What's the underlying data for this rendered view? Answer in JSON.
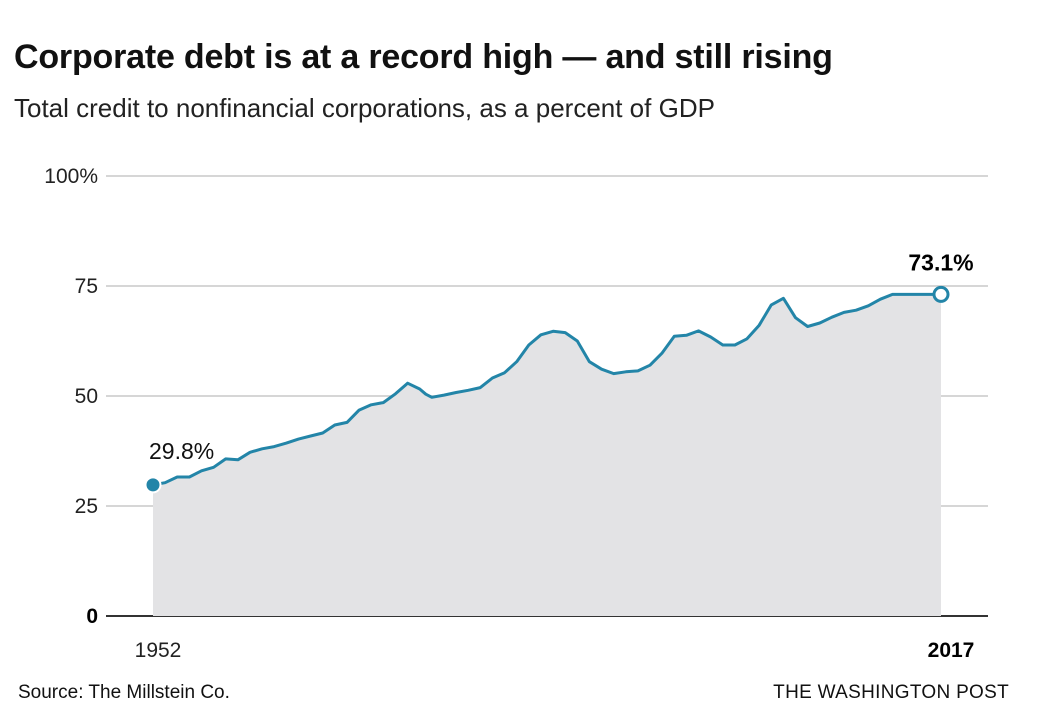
{
  "header": {
    "title": "Corporate debt is at a record high — and still rising",
    "subtitle": "Total credit to nonfinancial corporations, as a percent of GDP"
  },
  "footer": {
    "source": "Source: The Millstein Co.",
    "credit": "THE WASHINGTON POST"
  },
  "chart_data": {
    "type": "area",
    "title": "Corporate debt is at a record high — and still rising",
    "subtitle": "Total credit to nonfinancial corporations, as a percent of GDP",
    "xlabel": "",
    "ylabel": "",
    "xlim": [
      1952,
      2017
    ],
    "ylim": [
      0,
      100
    ],
    "grid": true,
    "y_ticks": [
      {
        "value": 0,
        "label": "0"
      },
      {
        "value": 25,
        "label": "25"
      },
      {
        "value": 50,
        "label": "50"
      },
      {
        "value": 75,
        "label": "75"
      },
      {
        "value": 100,
        "label": "100%"
      }
    ],
    "x_ticks": [
      {
        "value": 1952,
        "label": "1952"
      },
      {
        "value": 2017,
        "label": "2017"
      }
    ],
    "annotations": [
      {
        "x": 1952,
        "y": 29.8,
        "label": "29.8%",
        "marker": "filled"
      },
      {
        "x": 2017,
        "y": 73.1,
        "label": "73.1%",
        "marker": "open"
      }
    ],
    "colors": {
      "line": "#2385a8",
      "area": "#e3e3e5",
      "grid": "#c9c9c9",
      "axis": "#333333"
    },
    "series": [
      {
        "x": [
          1952,
          1953,
          1954,
          1955,
          1956,
          1957,
          1958,
          1959,
          1960,
          1961,
          1962,
          1963,
          1964,
          1965,
          1966,
          1967,
          1968,
          1969,
          1970,
          1971,
          1972,
          1973,
          1974,
          1974.5,
          1975,
          1976,
          1977,
          1978,
          1979,
          1980,
          1981,
          1982,
          1983,
          1984,
          1985,
          1986,
          1987,
          1988,
          1989,
          1990,
          1991,
          1992,
          1993,
          1994,
          1995,
          1996,
          1997,
          1998,
          1999,
          2000,
          2001,
          2002,
          2003,
          2004,
          2005,
          2006,
          2007,
          2008,
          2009,
          2010,
          2011,
          2012,
          2013,
          2014,
          2015,
          2016,
          2017
        ],
        "values": [
          29.8,
          30.3,
          31.6,
          31.6,
          33.0,
          33.8,
          35.7,
          35.5,
          37.2,
          38.0,
          38.5,
          39.3,
          40.2,
          40.9,
          41.6,
          43.4,
          44.0,
          46.8,
          48.0,
          48.5,
          50.5,
          52.9,
          51.6,
          50.4,
          49.7,
          50.2,
          50.8,
          51.3,
          51.9,
          54.1,
          55.3,
          57.8,
          61.6,
          63.9,
          64.7,
          64.4,
          62.5,
          57.8,
          56.1,
          55.1,
          55.5,
          55.7,
          57.0,
          59.8,
          63.6,
          63.8,
          64.8,
          63.4,
          61.6,
          61.6,
          63.0,
          66.1,
          70.7,
          72.2,
          67.8,
          65.8,
          66.6,
          67.9,
          69.0,
          69.5,
          70.5,
          72.0,
          73.1,
          73.1,
          73.1,
          73.1,
          73.1
        ]
      }
    ]
  }
}
